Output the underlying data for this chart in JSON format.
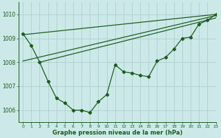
{
  "title": "Graphe pression niveau de la mer (hPa)",
  "background_color": "#cce8e8",
  "grid_color": "#aacfcf",
  "line_color": "#1a5c1a",
  "xlim": [
    -0.5,
    23
  ],
  "ylim": [
    1005.5,
    1010.5
  ],
  "yticks": [
    1006,
    1007,
    1008,
    1009,
    1010
  ],
  "xticks": [
    0,
    1,
    2,
    3,
    4,
    5,
    6,
    7,
    8,
    9,
    10,
    11,
    12,
    13,
    14,
    15,
    16,
    17,
    18,
    19,
    20,
    21,
    22,
    23
  ],
  "series1_x": [
    0,
    1,
    2,
    3,
    4,
    5,
    6,
    7,
    8,
    9,
    10,
    11,
    12,
    13,
    14,
    15,
    16,
    17,
    18,
    19,
    20,
    21,
    22,
    23
  ],
  "series1_y": [
    1009.2,
    1008.7,
    1008.0,
    1007.2,
    1006.5,
    1006.3,
    1006.0,
    1006.0,
    1005.9,
    1006.35,
    1006.65,
    1007.9,
    1007.6,
    1007.55,
    1007.45,
    1007.4,
    1008.05,
    1008.2,
    1008.55,
    1009.0,
    1009.05,
    1009.6,
    1009.75,
    1010.0
  ],
  "line1_x": [
    0,
    23
  ],
  "line1_y": [
    1008.05,
    1009.95
  ],
  "line2_x": [
    0,
    23
  ],
  "line2_y": [
    1009.15,
    1010.0
  ],
  "line3_x": [
    2,
    23
  ],
  "line3_y": [
    1008.0,
    1009.85
  ]
}
